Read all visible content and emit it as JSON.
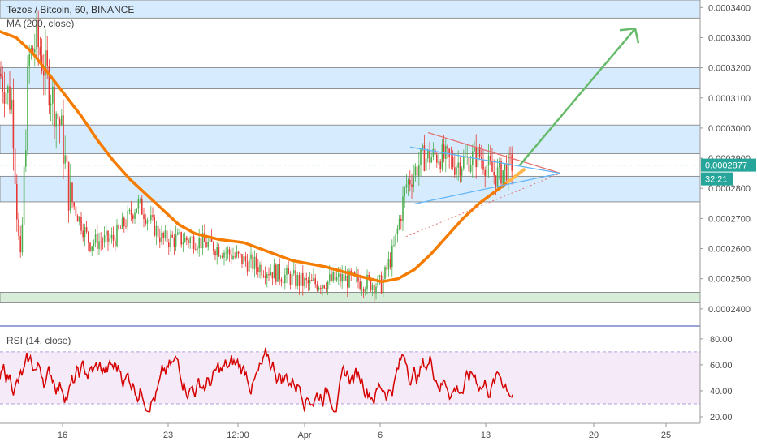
{
  "header": {
    "title": "Tezos / Bitcoin, 60, BINANCE",
    "ma_label": "MA (200, close)",
    "rsi_label": "RSI (14, close)"
  },
  "colors": {
    "candle": "#4caf50",
    "candle_down": "#e53935",
    "ma": "#f57c00",
    "rsi": "#d50000",
    "zone_blue": "#bbdefb",
    "zone_green": "#c8e6c9",
    "rsi_band": "#f3e5f5",
    "arrow": "#66bb6a",
    "wedge_top": "#e57373",
    "wedge_bottom": "#64b5f6",
    "price_tag": "#26a69a"
  },
  "price_tag": {
    "value": "0.0002877",
    "countdown": "32:21"
  },
  "chart_data": [
    {
      "type": "candlestick",
      "title": "Tezos / Bitcoin, 60, BINANCE",
      "y_ticks": [
        "0.0003400",
        "0.0003300",
        "0.0003200",
        "0.0003100",
        "0.0003000",
        "0.0002900",
        "0.0002800",
        "0.0002700",
        "0.0002600",
        "0.0002500",
        "0.0002400"
      ],
      "ylim": [
        0.0002335,
        0.0003425
      ],
      "x_ticks": [
        "16",
        "23",
        "12:00",
        "Apr",
        "6",
        "13",
        "20",
        "25"
      ],
      "last_price": 0.0002877,
      "zones_blue": [
        [
          0.0003365,
          0.0003425
        ],
        [
          0.000313,
          0.00032
        ],
        [
          0.0002915,
          0.000301
        ],
        [
          0.0002755,
          0.000284
        ]
      ],
      "zones_green": [
        [
          0.000242,
          0.0002455
        ]
      ],
      "ma": {
        "name": "MA (200, close)",
        "points": [
          [
            0,
            0.000332
          ],
          [
            20,
            0.00033
          ],
          [
            40,
            0.000325
          ],
          [
            60,
            0.000318
          ],
          [
            80,
            0.000311
          ],
          [
            100,
            0.000304
          ],
          [
            120,
            0.000296
          ],
          [
            140,
            0.000289
          ],
          [
            160,
            0.000283
          ],
          [
            180,
            0.000278
          ],
          [
            200,
            0.000273
          ],
          [
            220,
            0.000268
          ],
          [
            240,
            0.000265
          ],
          [
            270,
            0.000263
          ],
          [
            300,
            0.000262
          ],
          [
            330,
            0.000259
          ],
          [
            360,
            0.000256
          ],
          [
            400,
            0.000254
          ],
          [
            440,
            0.000251
          ],
          [
            470,
            0.000249
          ],
          [
            490,
            0.00025
          ],
          [
            510,
            0.000253
          ],
          [
            530,
            0.000258
          ],
          [
            550,
            0.000264
          ],
          [
            570,
            0.00027
          ],
          [
            590,
            0.000275
          ],
          [
            610,
            0.000279
          ],
          [
            630,
            0.000283
          ]
        ]
      },
      "projection_target": 0.000333
    },
    {
      "type": "line",
      "title": "RSI (14, close)",
      "y_ticks": [
        "80.00",
        "60.00",
        "40.00",
        "20.00"
      ],
      "ylim": [
        15,
        88
      ],
      "bands": [
        30,
        70
      ]
    }
  ]
}
